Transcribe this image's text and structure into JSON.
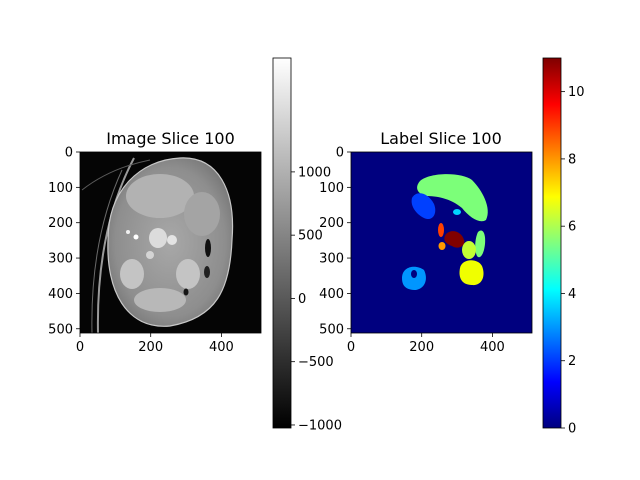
{
  "chart_data": [
    {
      "type": "heatmap",
      "title": "Image Slice 100",
      "colormap": "gray",
      "x_ticks": [
        "0",
        "200",
        "400"
      ],
      "y_ticks": [
        "0",
        "100",
        "200",
        "300",
        "400",
        "500"
      ],
      "x_range": [
        0,
        512
      ],
      "y_range": [
        0,
        512
      ],
      "colorbar": {
        "range": [
          -1024,
          1900
        ],
        "ticks": [
          -1000,
          -500,
          0,
          500,
          1000
        ],
        "tick_labels": [
          "−1000",
          "−500",
          "0",
          "500",
          "1000"
        ]
      }
    },
    {
      "type": "heatmap",
      "title": "Label Slice 100",
      "colormap": "jet",
      "x_ticks": [
        "0",
        "200",
        "400"
      ],
      "y_ticks": [
        "0",
        "100",
        "200",
        "300",
        "400",
        "500"
      ],
      "x_range": [
        0,
        512
      ],
      "y_range": [
        0,
        512
      ],
      "colorbar": {
        "range": [
          0,
          11
        ],
        "ticks": [
          0,
          2,
          4,
          6,
          8,
          10
        ],
        "tick_labels": [
          "0",
          "2",
          "4",
          "6",
          "8",
          "10"
        ]
      }
    }
  ]
}
